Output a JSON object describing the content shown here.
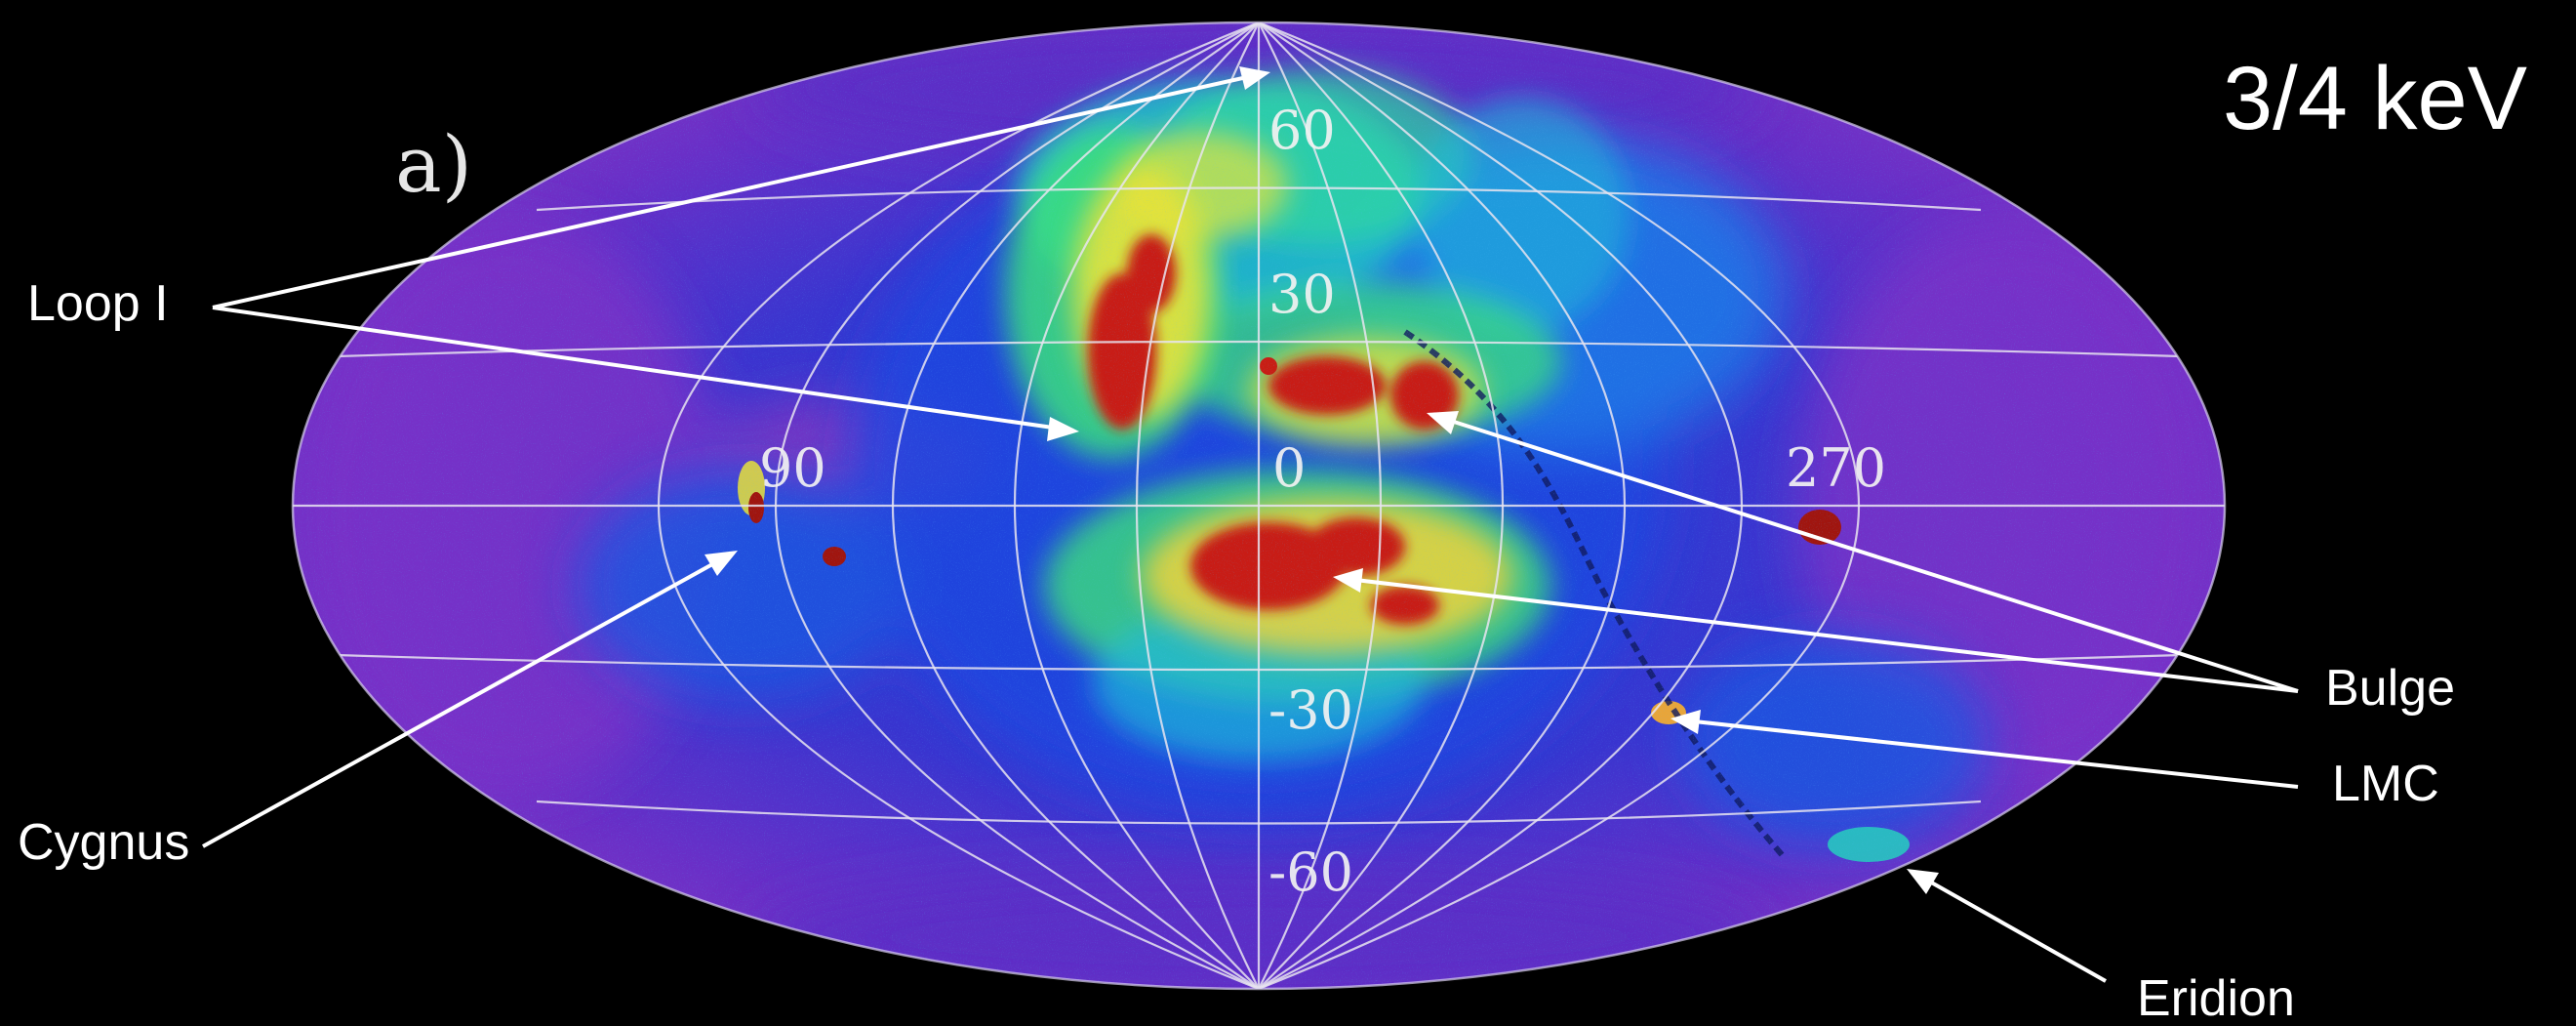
{
  "panel_label": "a)",
  "energy_band": "3/4 keV",
  "grid_labels": {
    "lat_60": "60",
    "lat_30": "30",
    "lon_0": "0",
    "lon_90": "90",
    "lon_270": "270",
    "lat_m30": "-30",
    "lat_m60": "-60"
  },
  "features": {
    "loop_i": "Loop I",
    "cygnus": "Cygnus",
    "bulge": "Bulge",
    "lmc": "LMC",
    "eridion": "Eridion"
  },
  "colors": {
    "background": "#000000",
    "map_base": "#6a2fc7",
    "map_blue": "#1f3fd8",
    "emission_cyan": "#19b7e6",
    "emission_green": "#3fe07a",
    "emission_yellow": "#e8e23a",
    "emission_red": "#c81e14",
    "annotation": "#ffffff"
  }
}
